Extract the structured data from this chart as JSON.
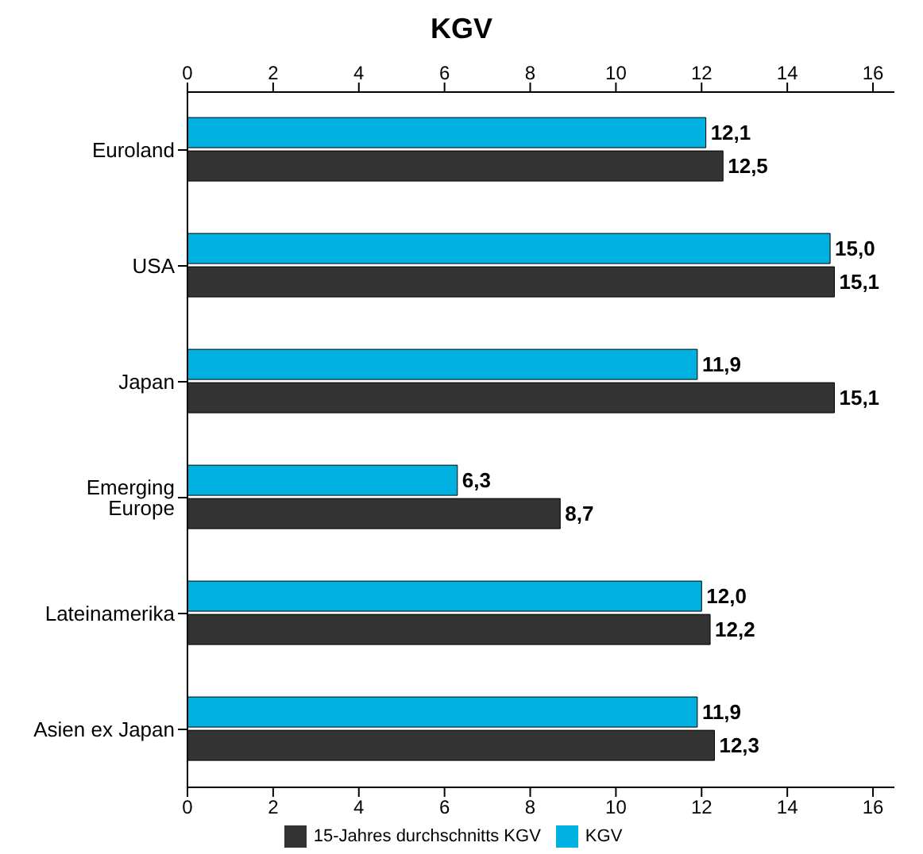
{
  "chart_data": {
    "type": "bar",
    "orientation": "horizontal",
    "title": "KGV",
    "categories": [
      "Euroland",
      "USA",
      "Japan",
      "Emerging Europe",
      "Lateinamerika",
      "Asien ex Japan"
    ],
    "series": [
      {
        "name": "KGV",
        "color": "#00b0e0",
        "values": [
          12.1,
          15.0,
          11.9,
          6.3,
          12.0,
          11.9
        ],
        "value_labels": [
          "12,1",
          "15,0",
          "11,9",
          "6,3",
          "12,0",
          "11,9"
        ]
      },
      {
        "name": "15-Jahres durchschnitts KGV",
        "color": "#333333",
        "values": [
          12.5,
          15.1,
          15.1,
          8.7,
          12.2,
          12.3
        ],
        "value_labels": [
          "12,5",
          "15,1",
          "15,1",
          "8,7",
          "12,2",
          "12,3"
        ]
      }
    ],
    "xlim": [
      0,
      16.5
    ],
    "xticks": [
      0,
      2,
      4,
      6,
      8,
      10,
      12,
      14,
      16
    ],
    "x2lim": [
      0,
      16.5
    ],
    "x2ticks": [
      0,
      2,
      4,
      6,
      8,
      10,
      12,
      14,
      16
    ],
    "grid": false,
    "legend": "bottom"
  }
}
